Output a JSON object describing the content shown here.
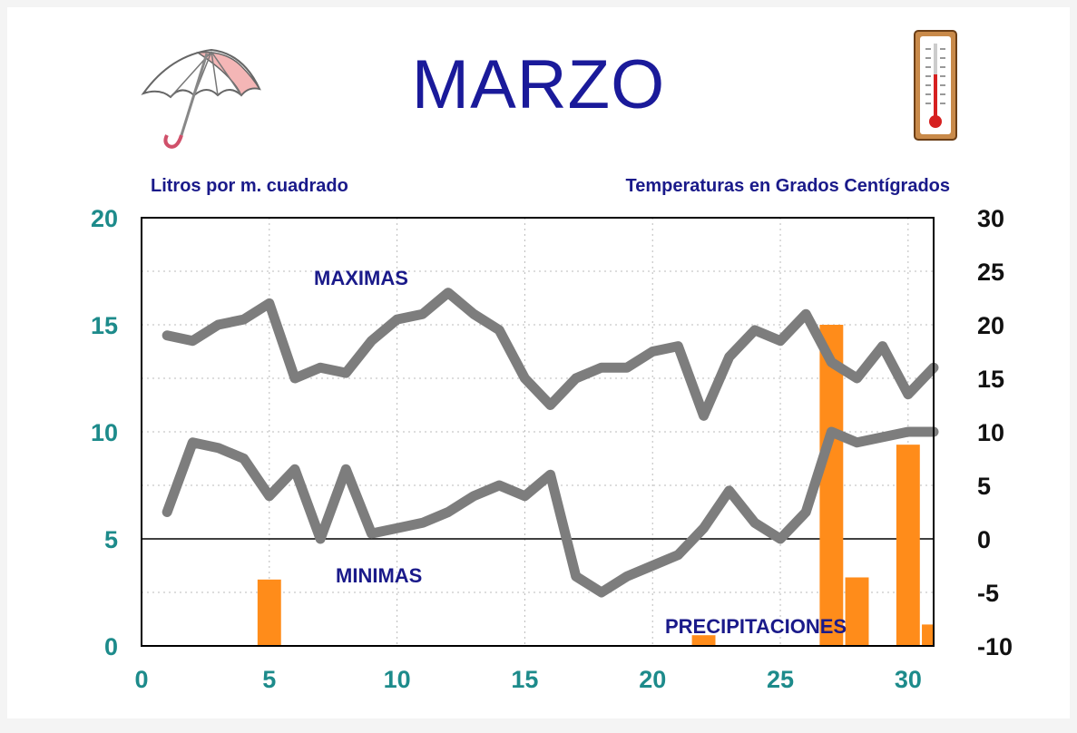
{
  "title": "MARZO",
  "left_axis_caption": "Litros por m. cuadrado",
  "right_axis_caption": "Temperaturas en Grados Centígrados",
  "icons": {
    "umbrella": "umbrella-icon",
    "thermometer": "thermometer-icon"
  },
  "colors": {
    "line": "#7d7d7d",
    "bar": "#ff8c1a",
    "label": "#1a1a8a",
    "left_ticks": "#1d8b8b",
    "right_ticks": "#111111"
  },
  "chart_data": {
    "type": "bar+line",
    "x": {
      "range": [
        0,
        31
      ],
      "ticks": [
        "0",
        "5",
        "10",
        "15",
        "20",
        "25",
        "30"
      ]
    },
    "y_left": {
      "label": "Litros por m. cuadrado",
      "range": [
        0,
        20
      ],
      "ticks": [
        "0",
        "5",
        "10",
        "15",
        "20"
      ]
    },
    "y_right": {
      "label": "Temperaturas en Grados Centígrados",
      "range": [
        -10,
        30
      ],
      "ticks": [
        "-10",
        "-5",
        "0",
        "5",
        "10",
        "15",
        "20",
        "25",
        "30"
      ]
    },
    "grid": true,
    "zero_line": 0,
    "bars": {
      "name": "PRECIPITACIONES",
      "axis": "left",
      "values": [
        {
          "day": 5,
          "value": 3.1
        },
        {
          "day": 22,
          "value": 0.5
        },
        {
          "day": 27,
          "value": 15.0
        },
        {
          "day": 28,
          "value": 3.2
        },
        {
          "day": 30,
          "value": 9.4
        },
        {
          "day": 31,
          "value": 1.0
        }
      ]
    },
    "lines": [
      {
        "name": "MAXIMAS",
        "axis": "right",
        "x": [
          1,
          2,
          3,
          4,
          5,
          6,
          7,
          8,
          9,
          10,
          11,
          12,
          13,
          14,
          15,
          16,
          17,
          18,
          19,
          20,
          21,
          22,
          23,
          24,
          25,
          26,
          27,
          28,
          29,
          30,
          31
        ],
        "values": [
          19,
          18.5,
          20,
          20.5,
          22,
          15,
          16,
          15.5,
          18.5,
          20.5,
          21,
          23,
          21,
          19.5,
          15,
          12.5,
          15,
          16,
          16,
          17.5,
          18,
          11.5,
          17,
          19.5,
          18.5,
          21,
          16.5,
          15,
          18,
          13.5,
          16
        ]
      },
      {
        "name": "MINIMAS",
        "axis": "right",
        "x": [
          1,
          2,
          3,
          4,
          5,
          6,
          7,
          8,
          9,
          10,
          11,
          12,
          13,
          14,
          15,
          16,
          17,
          18,
          19,
          20,
          21,
          22,
          23,
          24,
          25,
          26,
          27,
          28,
          29,
          30,
          31
        ],
        "values": [
          2.5,
          9,
          8.5,
          7.5,
          4,
          6.5,
          0,
          6.5,
          0.5,
          1,
          1.5,
          2.5,
          4,
          5,
          4,
          6,
          -3.5,
          -5,
          -3.5,
          -2.5,
          -1.5,
          1,
          4.5,
          1.5,
          0,
          2.5,
          10,
          9,
          9.5,
          10,
          10
        ]
      }
    ],
    "annotations": [
      "MAXIMAS",
      "MINIMAS",
      "PRECIPITACIONES"
    ]
  }
}
